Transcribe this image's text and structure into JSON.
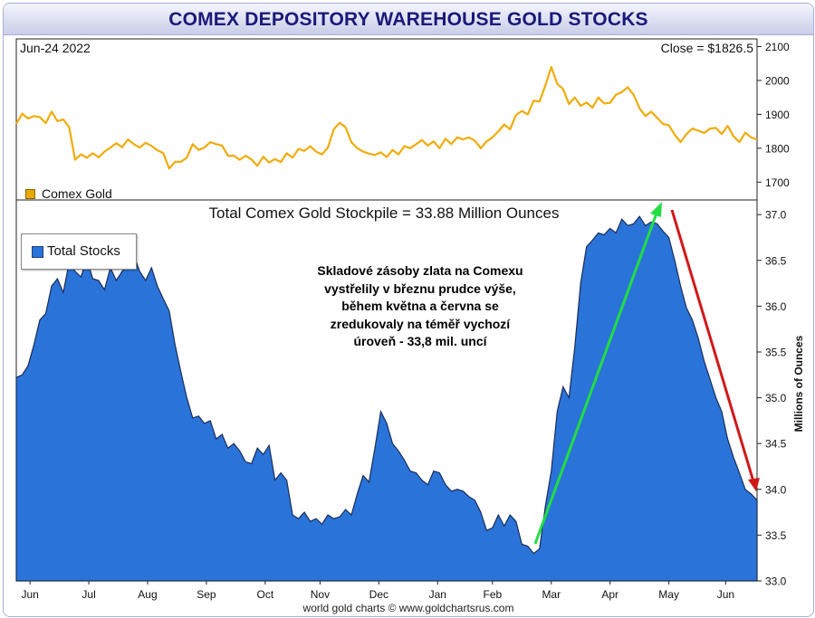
{
  "header": {
    "title": "COMEX DEPOSITORY WAREHOUSE GOLD STOCKS"
  },
  "top_panel": {
    "date": "Jun-24  2022",
    "close_label": "Close = $1826.5"
  },
  "bottom_panel": {
    "subtitle": "Total Comex Gold Stockpile = 33.88 Million Ounces"
  },
  "annotation": {
    "lines": [
      "Skladové zásoby zlata na Comexu",
      "vystřelily v březnu prudce výše,",
      "během května a června se",
      "zredukovaly na téměř vychozí",
      "úroveň - 33,8 mil. uncí"
    ]
  },
  "footer": {
    "credit": "world gold charts © www.goldchartsrus.com"
  },
  "colors": {
    "gold_line": "#f0ac0a",
    "stocks_fill": "#2a73d9",
    "stocks_edge": "#1a2e55",
    "arrow_up": "#22dd44",
    "arrow_down": "#d01818",
    "title": "#1a1a7a"
  },
  "chart_data": [
    {
      "type": "line",
      "series": [
        {
          "name": "Comex Gold",
          "x": [
            0,
            3,
            6,
            9,
            12,
            15,
            18,
            21,
            24,
            27,
            30,
            33,
            36,
            39,
            42,
            45,
            48,
            51,
            54,
            57,
            60,
            63,
            66,
            69,
            72,
            75,
            78,
            81,
            84,
            87,
            90,
            93,
            96,
            99,
            102,
            105,
            108,
            111,
            114,
            117,
            120,
            123,
            126,
            129,
            132,
            135,
            138,
            141,
            144,
            147,
            150,
            153,
            156,
            159,
            162,
            165,
            168,
            171,
            174,
            177,
            180,
            183,
            186,
            189,
            192,
            195,
            198,
            201,
            204,
            207,
            210,
            213,
            216,
            219,
            222,
            225,
            228,
            231,
            234,
            237,
            240,
            243,
            246,
            249,
            252,
            255,
            258,
            261,
            264,
            267,
            270,
            273,
            276,
            279,
            282,
            285,
            288,
            291,
            294,
            297,
            300,
            303,
            306,
            309,
            312,
            315,
            318,
            321,
            324,
            327,
            330,
            333,
            336,
            339,
            342,
            345,
            348,
            351,
            354,
            357,
            360,
            363,
            366,
            369,
            372,
            375,
            378
          ],
          "values": [
            1872,
            1902,
            1888,
            1895,
            1892,
            1874,
            1908,
            1880,
            1885,
            1862,
            1766,
            1782,
            1772,
            1785,
            1773,
            1790,
            1802,
            1815,
            1803,
            1826,
            1812,
            1802,
            1816,
            1807,
            1794,
            1786,
            1740,
            1760,
            1760,
            1772,
            1812,
            1795,
            1802,
            1818,
            1812,
            1808,
            1778,
            1778,
            1766,
            1778,
            1767,
            1748,
            1775,
            1758,
            1768,
            1759,
            1785,
            1772,
            1798,
            1792,
            1806,
            1790,
            1782,
            1802,
            1856,
            1875,
            1862,
            1818,
            1800,
            1790,
            1784,
            1780,
            1788,
            1774,
            1795,
            1782,
            1806,
            1800,
            1812,
            1824,
            1808,
            1820,
            1800,
            1828,
            1812,
            1832,
            1826,
            1832,
            1822,
            1800,
            1820,
            1832,
            1850,
            1870,
            1856,
            1898,
            1910,
            1900,
            1940,
            1938,
            1986,
            2040,
            1990,
            1975,
            1930,
            1950,
            1925,
            1935,
            1920,
            1950,
            1932,
            1934,
            1958,
            1966,
            1980,
            1958,
            1918,
            1895,
            1908,
            1890,
            1872,
            1868,
            1840,
            1818,
            1842,
            1858,
            1852,
            1845,
            1858,
            1860,
            1842,
            1866,
            1835,
            1818,
            1846,
            1832,
            1826
          ],
          "xlim": [
            0,
            378
          ],
          "ylim": [
            1650,
            2120
          ],
          "yticks": [
            1700,
            1800,
            1900,
            2000,
            2100
          ]
        }
      ]
    },
    {
      "type": "area",
      "ylabel": "Millions of Ounces",
      "series": [
        {
          "name": "Total Stocks",
          "x": [
            0,
            3,
            6,
            9,
            12,
            15,
            18,
            21,
            24,
            27,
            30,
            33,
            36,
            39,
            42,
            45,
            48,
            51,
            54,
            57,
            60,
            63,
            66,
            69,
            72,
            75,
            78,
            81,
            84,
            87,
            90,
            93,
            96,
            99,
            102,
            105,
            108,
            111,
            114,
            117,
            120,
            123,
            126,
            129,
            132,
            135,
            138,
            141,
            144,
            147,
            150,
            153,
            156,
            159,
            162,
            165,
            168,
            171,
            174,
            177,
            180,
            183,
            186,
            189,
            192,
            195,
            198,
            201,
            204,
            207,
            210,
            213,
            216,
            219,
            222,
            225,
            228,
            231,
            234,
            237,
            240,
            243,
            246,
            249,
            252,
            255,
            258,
            261,
            264,
            267,
            270,
            273,
            276,
            279,
            282,
            285,
            288,
            291,
            294,
            297,
            300,
            303,
            306,
            309,
            312,
            315,
            318,
            321,
            324,
            327,
            330,
            333,
            336,
            339,
            342,
            345,
            348,
            351,
            354,
            357,
            360,
            363,
            366,
            369,
            372,
            375,
            378
          ],
          "values": [
            35.22,
            35.25,
            35.35,
            35.58,
            35.85,
            35.92,
            36.22,
            36.3,
            36.15,
            36.48,
            36.38,
            36.32,
            36.52,
            36.3,
            36.28,
            36.18,
            36.42,
            36.28,
            36.38,
            36.45,
            36.55,
            36.38,
            36.28,
            36.42,
            36.22,
            36.08,
            35.95,
            35.58,
            35.28,
            35.0,
            34.78,
            34.8,
            34.72,
            34.75,
            34.55,
            34.6,
            34.45,
            34.5,
            34.42,
            34.3,
            34.28,
            34.45,
            34.38,
            34.48,
            34.1,
            34.18,
            34.1,
            33.72,
            33.68,
            33.75,
            33.65,
            33.68,
            33.62,
            33.72,
            33.68,
            33.7,
            33.78,
            33.72,
            33.95,
            34.15,
            34.08,
            34.45,
            34.85,
            34.72,
            34.5,
            34.42,
            34.32,
            34.2,
            34.18,
            34.1,
            34.05,
            34.2,
            34.18,
            34.05,
            33.98,
            34.0,
            33.98,
            33.92,
            33.88,
            33.75,
            33.55,
            33.58,
            33.72,
            33.6,
            33.72,
            33.65,
            33.4,
            33.38,
            33.3,
            33.35,
            33.82,
            34.2,
            34.85,
            35.12,
            35.0,
            35.55,
            36.25,
            36.65,
            36.72,
            36.8,
            36.78,
            36.85,
            36.8,
            36.95,
            36.88,
            36.9,
            36.98,
            36.88,
            36.92,
            36.9,
            36.82,
            36.75,
            36.5,
            36.22,
            35.98,
            35.85,
            35.65,
            35.4,
            35.2,
            35.0,
            34.85,
            34.55,
            34.35,
            34.18,
            34.0,
            33.95,
            33.88
          ],
          "xlim": [
            0,
            378
          ],
          "ylim": [
            33.0,
            37.15
          ],
          "yticks": [
            33.0,
            33.5,
            34.0,
            34.5,
            35.0,
            35.5,
            36.0,
            36.5,
            37.0
          ]
        }
      ],
      "xaxis": {
        "categories": [
          "Jun",
          "Jul",
          "Aug",
          "Sep",
          "Oct",
          "Nov",
          "Dec",
          "Jan",
          "Feb",
          "Mar",
          "Apr",
          "May",
          "Jun"
        ],
        "positions": [
          7,
          37,
          67,
          97,
          127,
          155,
          185,
          215,
          243,
          273,
          303,
          333,
          362
        ]
      }
    }
  ]
}
